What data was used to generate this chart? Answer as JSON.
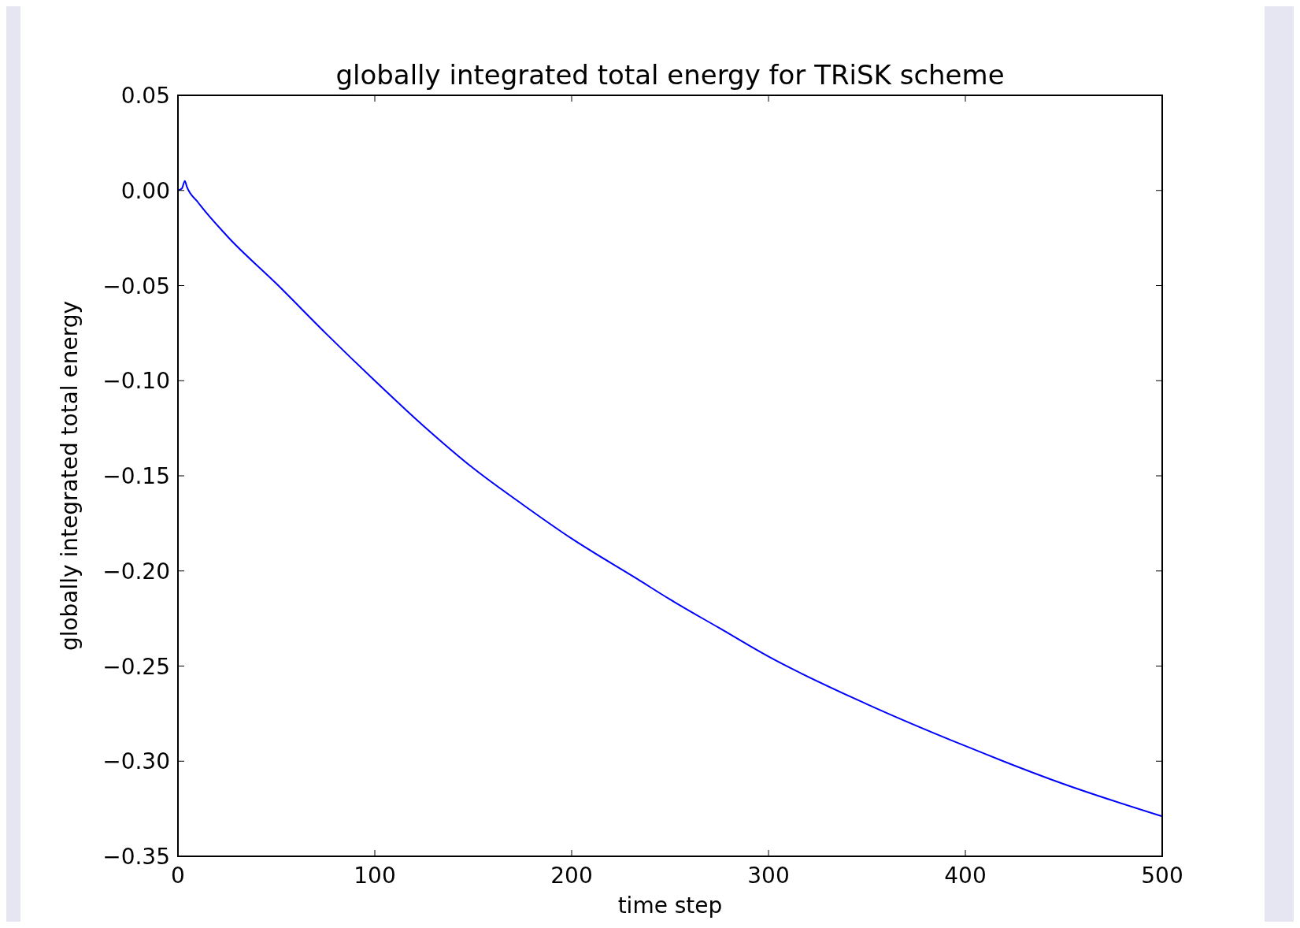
{
  "chart_data": {
    "type": "line",
    "title": "globally integrated total energy for TRiSK scheme",
    "xlabel": "time step",
    "ylabel": "globally integrated total energy",
    "x": [
      0,
      2,
      3.5,
      4.5,
      10,
      25,
      50,
      75,
      100,
      125,
      150,
      175,
      200,
      233,
      250,
      275,
      300,
      350,
      400,
      450,
      500
    ],
    "series": [
      {
        "color": "#0000ff",
        "values": [
          0,
          0.001,
          0.005,
          0.002,
          -0.006,
          -0.024,
          -0.049,
          -0.075,
          -0.1,
          -0.124,
          -0.146,
          -0.165,
          -0.183,
          -0.204,
          -0.215,
          -0.23,
          -0.245,
          -0.27,
          -0.292,
          -0.312,
          -0.329
        ]
      }
    ],
    "xlim": [
      0,
      500
    ],
    "xticks": [
      0,
      100,
      200,
      300,
      400,
      500
    ],
    "ylim": [
      -0.35,
      0.05
    ],
    "yticks": [
      {
        "value": -0.35,
        "label": "−0.35"
      },
      {
        "value": -0.3,
        "label": "−0.30"
      },
      {
        "value": -0.25,
        "label": "−0.25"
      },
      {
        "value": -0.2,
        "label": "−0.20"
      },
      {
        "value": -0.15,
        "label": "−0.15"
      },
      {
        "value": -0.1,
        "label": "−0.10"
      },
      {
        "value": -0.05,
        "label": "−0.05"
      },
      {
        "value": 0,
        "label": "0.00"
      },
      {
        "value": 0.05,
        "label": "0.05"
      }
    ],
    "grid": false
  }
}
